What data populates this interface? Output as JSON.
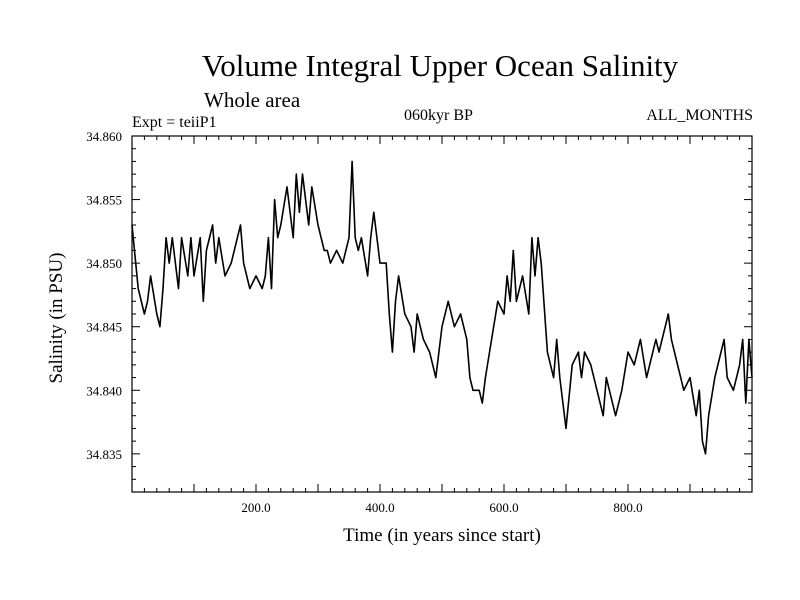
{
  "header": {
    "title": "Volume Integral Upper Ocean Salinity",
    "subtitle": "Whole area",
    "experiment": "Expt = teiiP1",
    "period": "060kyr BP",
    "months": "ALL_MONTHS"
  },
  "chart_data": {
    "type": "line",
    "title": "Volume Integral Upper Ocean Salinity",
    "xlabel": "Time (in years since start)",
    "ylabel": "Salinity (in PSU)",
    "xlim": [
      0,
      1000
    ],
    "ylim": [
      34.832,
      34.86
    ],
    "x_ticks": [
      200,
      400,
      600,
      800
    ],
    "x_tick_labels": [
      "200.0",
      "400.0",
      "600.0",
      "800.0"
    ],
    "y_ticks": [
      34.835,
      34.84,
      34.845,
      34.85,
      34.855,
      34.86
    ],
    "y_tick_labels": [
      "34.835",
      "34.840",
      "34.845",
      "34.850",
      "34.855",
      "34.860"
    ],
    "grid": false,
    "series_color": "#000000",
    "x": [
      0,
      10,
      20,
      25,
      30,
      40,
      45,
      50,
      55,
      60,
      65,
      70,
      75,
      80,
      90,
      95,
      100,
      110,
      115,
      120,
      130,
      135,
      140,
      150,
      160,
      170,
      175,
      180,
      190,
      200,
      210,
      215,
      220,
      225,
      230,
      235,
      240,
      250,
      255,
      260,
      265,
      270,
      275,
      280,
      285,
      290,
      300,
      310,
      315,
      320,
      330,
      340,
      350,
      355,
      360,
      365,
      370,
      380,
      385,
      390,
      395,
      400,
      410,
      415,
      420,
      425,
      430,
      440,
      450,
      455,
      460,
      470,
      480,
      490,
      500,
      510,
      520,
      530,
      540,
      545,
      550,
      560,
      565,
      570,
      580,
      590,
      600,
      605,
      610,
      615,
      620,
      630,
      640,
      645,
      650,
      655,
      660,
      670,
      680,
      685,
      690,
      695,
      700,
      710,
      720,
      725,
      730,
      740,
      750,
      760,
      765,
      770,
      780,
      790,
      800,
      810,
      820,
      830,
      840,
      845,
      850,
      860,
      865,
      870,
      880,
      890,
      900,
      910,
      915,
      920,
      925,
      930,
      940,
      950,
      955,
      960,
      970,
      980,
      985,
      990,
      995,
      1000
    ],
    "y": [
      34.853,
      34.848,
      34.846,
      34.847,
      34.849,
      34.846,
      34.845,
      34.848,
      34.852,
      34.85,
      34.852,
      34.85,
      34.848,
      34.852,
      34.849,
      34.852,
      34.849,
      34.852,
      34.847,
      34.851,
      34.853,
      34.85,
      34.852,
      34.849,
      34.85,
      34.852,
      34.853,
      34.85,
      34.848,
      34.849,
      34.848,
      34.849,
      34.852,
      34.848,
      34.855,
      34.852,
      34.853,
      34.856,
      34.854,
      34.852,
      34.857,
      34.854,
      34.857,
      34.855,
      34.853,
      34.856,
      34.853,
      34.851,
      34.851,
      34.85,
      34.851,
      34.85,
      34.852,
      34.858,
      34.852,
      34.851,
      34.852,
      34.849,
      34.852,
      34.854,
      34.852,
      34.85,
      34.85,
      34.846,
      34.843,
      34.847,
      34.849,
      34.846,
      34.845,
      34.843,
      34.846,
      34.844,
      34.843,
      34.841,
      34.845,
      34.847,
      34.845,
      34.846,
      34.844,
      34.841,
      34.84,
      34.84,
      34.839,
      34.841,
      34.844,
      34.847,
      34.846,
      34.849,
      34.847,
      34.851,
      34.847,
      34.849,
      34.846,
      34.852,
      34.849,
      34.852,
      34.85,
      34.843,
      34.841,
      34.844,
      34.841,
      34.839,
      34.837,
      34.842,
      34.843,
      34.841,
      34.843,
      34.842,
      34.84,
      34.838,
      34.841,
      34.84,
      34.838,
      34.84,
      34.843,
      34.842,
      34.844,
      34.841,
      34.843,
      34.844,
      34.843,
      34.845,
      34.846,
      34.844,
      34.842,
      34.84,
      34.841,
      34.838,
      34.84,
      34.836,
      34.835,
      34.838,
      34.841,
      34.843,
      34.844,
      34.841,
      34.84,
      34.842,
      34.844,
      34.839,
      34.844,
      34.841
    ]
  }
}
